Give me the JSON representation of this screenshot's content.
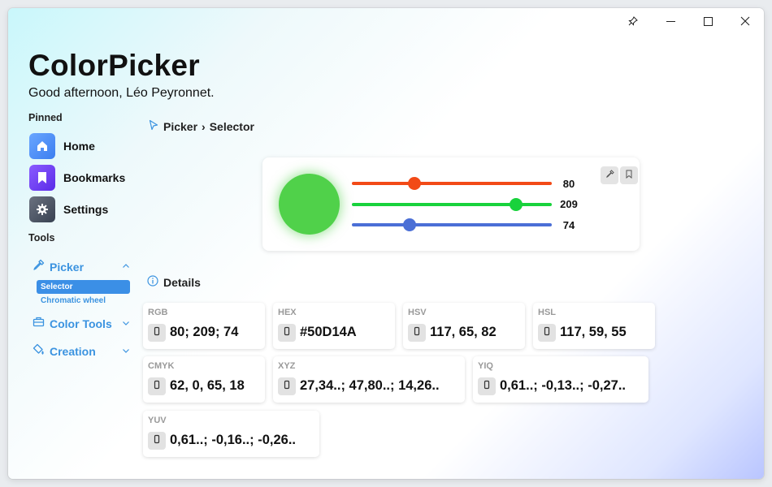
{
  "app": {
    "title": "ColorPicker",
    "greeting": "Good afternoon, Léo Peyronnet."
  },
  "titlebar": {
    "pin_icon": "pin-icon",
    "minimize_icon": "minimize-icon",
    "maximize_icon": "maximize-icon",
    "close_icon": "close-icon"
  },
  "sidebar": {
    "pinned_label": "Pinned",
    "pinned": [
      {
        "label": "Home",
        "icon": "home-icon",
        "color": "#4a8df0"
      },
      {
        "label": "Bookmarks",
        "icon": "bookmark-icon",
        "color": "#6a3ff0"
      },
      {
        "label": "Settings",
        "icon": "gear-icon",
        "color": "#4b5563"
      }
    ],
    "tools_label": "Tools",
    "tools": [
      {
        "label": "Picker",
        "icon": "eyedropper-icon",
        "expanded": true
      },
      {
        "label": "Color Tools",
        "icon": "toolbox-icon",
        "expanded": false
      },
      {
        "label": "Creation",
        "icon": "paint-bucket-icon",
        "expanded": false
      }
    ],
    "picker_subitems": [
      {
        "label": "Selector",
        "selected": true
      },
      {
        "label": "Chromatic wheel",
        "selected": false
      }
    ],
    "accent": "#3b93e0"
  },
  "breadcrumb": {
    "root": "Picker",
    "separator": "›",
    "current": "Selector"
  },
  "color": {
    "swatch": "#50D14A",
    "sliders": [
      {
        "channel": "red",
        "value": "80",
        "max": 255,
        "color": "#f24a17"
      },
      {
        "channel": "green",
        "value": "209",
        "max": 255,
        "color": "#18d23c"
      },
      {
        "channel": "blue",
        "value": "74",
        "max": 255,
        "color": "#4b6fd6"
      }
    ],
    "actions": [
      "eyedropper-icon",
      "bookmark-icon"
    ]
  },
  "details": {
    "heading": "Details",
    "items": [
      {
        "name": "RGB",
        "value": "80; 209; 74"
      },
      {
        "name": "HEX",
        "value": "#50D14A"
      },
      {
        "name": "HSV",
        "value": "117, 65, 82"
      },
      {
        "name": "HSL",
        "value": "117, 59, 55"
      },
      {
        "name": "CMYK",
        "value": "62, 0, 65, 18"
      },
      {
        "name": "XYZ",
        "value": "27,34..; 47,80..; 14,26.."
      },
      {
        "name": "YIQ",
        "value": "0,61..; -0,13..; -0,27.."
      },
      {
        "name": "YUV",
        "value": "0,61..; -0,16..; -0,26.."
      }
    ]
  }
}
